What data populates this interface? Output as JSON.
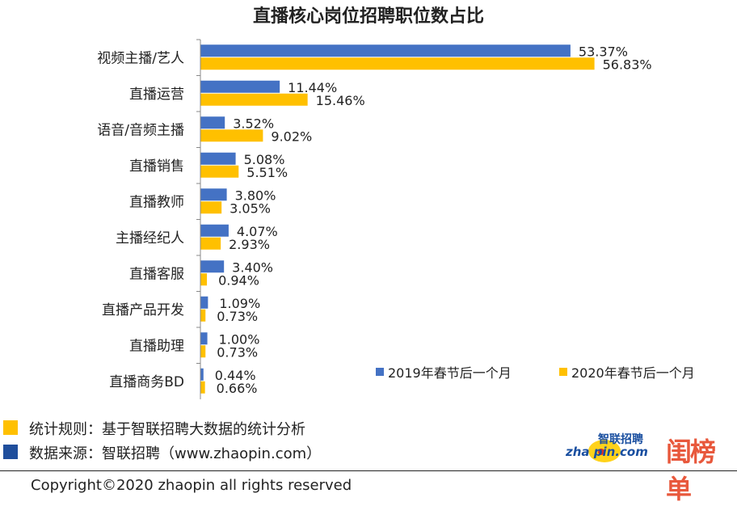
{
  "chart_data": {
    "type": "bar",
    "orientation": "horizontal",
    "title": "直播核心岗位招聘职位数占比",
    "categories": [
      "视频主播/艺人",
      "直播运营",
      "语音/音频主播",
      "直播销售",
      "直播教师",
      "主播经纪人",
      "直播客服",
      "直播产品开发",
      "直播助理",
      "直播商务BD"
    ],
    "series": [
      {
        "name": "2019年春节后一个月",
        "color": "#4472c4",
        "values": [
          53.37,
          11.44,
          3.52,
          5.08,
          3.8,
          4.07,
          3.4,
          1.09,
          1.0,
          0.44
        ],
        "labels": [
          "53.37%",
          "11.44%",
          "3.52%",
          "5.08%",
          "3.80%",
          "4.07%",
          "3.40%",
          "1.09%",
          "1.00%",
          "0.44%"
        ]
      },
      {
        "name": "2020年春节后一个月",
        "color": "#ffc000",
        "values": [
          56.83,
          15.46,
          9.02,
          5.51,
          3.05,
          2.93,
          0.94,
          0.73,
          0.73,
          0.66
        ],
        "labels": [
          "56.83%",
          "15.46%",
          "9.02%",
          "5.51%",
          "3.05%",
          "2.93%",
          "0.94%",
          "0.73%",
          "0.73%",
          "0.66%"
        ]
      }
    ],
    "xlim": [
      0,
      60
    ],
    "grid": false,
    "legend_placement": "bottom-right"
  },
  "notes": [
    {
      "text": "统计规则：基于智联招聘大数据的统计分析",
      "color": "#ffc000"
    },
    {
      "text": "数据来源：智联招聘（www.zhaopin.com）",
      "color": "#1f4e9c"
    }
  ],
  "logos": {
    "zhaopin": "zhaopin.com 智联招聘",
    "second": "闺榜单"
  },
  "copyright": "Copyright©2020 zhaopin all rights reserved"
}
